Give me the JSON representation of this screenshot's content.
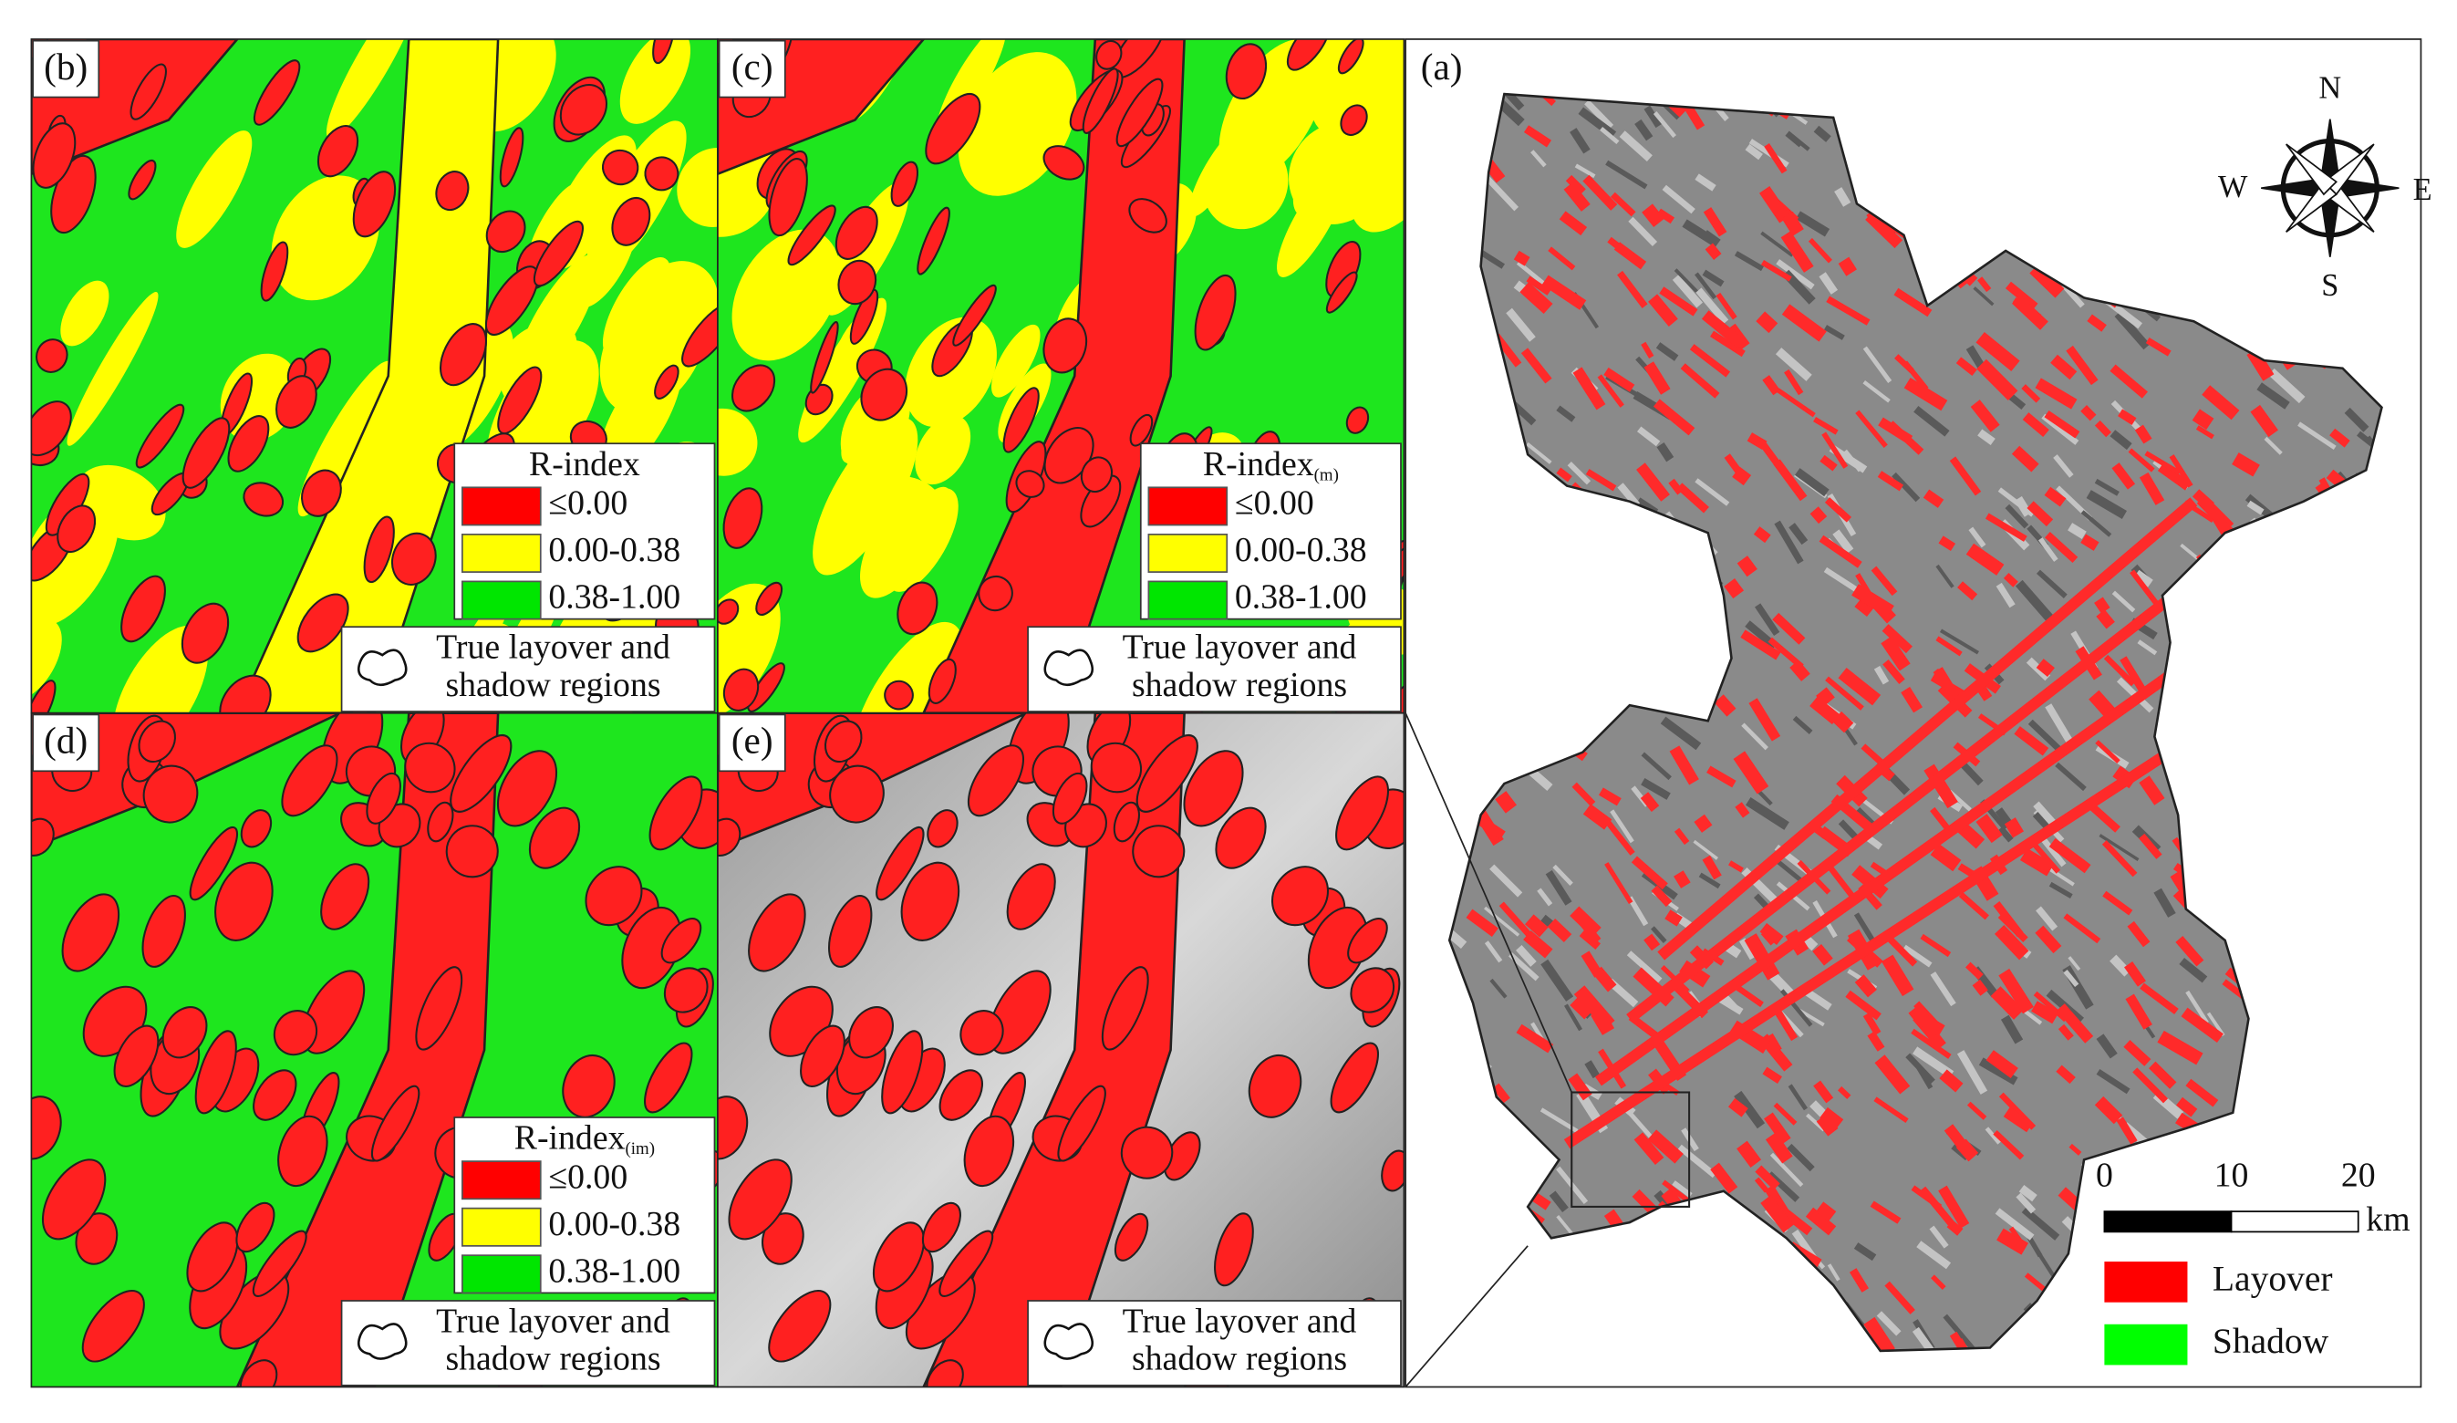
{
  "panels": [
    {
      "label": "(b)",
      "legend": {
        "title": "R-index",
        "items": [
          {
            "label": "≤0.00",
            "color": "#ff0000"
          },
          {
            "label": "0.00-0.38",
            "color": "#ffff00"
          },
          {
            "label": "0.38-1.00",
            "color": "#00e600"
          }
        ]
      },
      "outline_label": [
        "True layover and",
        "shadow regions"
      ]
    },
    {
      "label": "(c)",
      "legend": {
        "title": "R-index",
        "subscript": "(m)",
        "items": [
          {
            "label": "≤0.00",
            "color": "#ff0000"
          },
          {
            "label": "0.00-0.38",
            "color": "#ffff00"
          },
          {
            "label": "0.38-1.00",
            "color": "#00e600"
          }
        ]
      },
      "outline_label": [
        "True layover and",
        "shadow regions"
      ]
    },
    {
      "label": "(d)",
      "legend": {
        "title": "R-index",
        "subscript": "(im)",
        "items": [
          {
            "label": "≤0.00",
            "color": "#ff0000"
          },
          {
            "label": "0.00-0.38",
            "color": "#ffff00"
          },
          {
            "label": "0.38-1.00",
            "color": "#00e600"
          }
        ]
      },
      "outline_label": [
        "True layover and",
        "shadow regions"
      ]
    },
    {
      "label": "(e)",
      "outline_label": [
        "True layover and",
        "shadow regions"
      ]
    }
  ],
  "main": {
    "label": "(a)",
    "compass": {
      "n": "N",
      "w": "W",
      "e": "E",
      "s": "S"
    },
    "scale": {
      "ticks": [
        0,
        10,
        20
      ],
      "unit": "km"
    },
    "legend": [
      {
        "label": "Layover",
        "color": "#ff0000"
      },
      {
        "label": "Shadow",
        "color": "#00ff00"
      }
    ]
  }
}
